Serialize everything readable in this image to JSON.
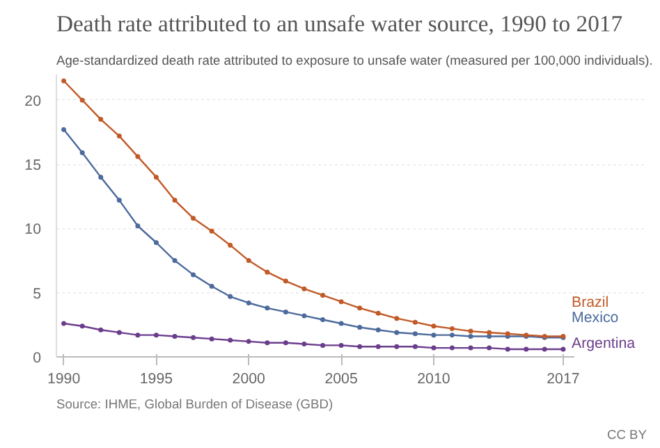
{
  "chart_data": {
    "type": "line",
    "title": "Death rate attributed to an unsafe water source, 1990 to 2017",
    "subtitle": "Age-standardized death rate attributed to exposure to unsafe water (measured per 100,000 individuals).",
    "x": [
      1990,
      1991,
      1992,
      1993,
      1994,
      1995,
      1996,
      1997,
      1998,
      1999,
      2000,
      2001,
      2002,
      2003,
      2004,
      2005,
      2006,
      2007,
      2008,
      2009,
      2010,
      2011,
      2012,
      2013,
      2014,
      2015,
      2016,
      2017
    ],
    "series": [
      {
        "name": "Brazil",
        "color": "#c15a28",
        "values": [
          21.5,
          20.0,
          18.5,
          17.2,
          15.6,
          14.0,
          12.2,
          10.8,
          9.8,
          8.7,
          7.5,
          6.6,
          5.9,
          5.3,
          4.8,
          4.3,
          3.8,
          3.4,
          3.0,
          2.7,
          2.4,
          2.2,
          2.0,
          1.9,
          1.8,
          1.7,
          1.6,
          1.6
        ]
      },
      {
        "name": "Mexico",
        "color": "#4c6a9c",
        "values": [
          17.7,
          15.9,
          14.0,
          12.2,
          10.2,
          8.9,
          7.5,
          6.4,
          5.5,
          4.7,
          4.2,
          3.8,
          3.5,
          3.2,
          2.9,
          2.6,
          2.3,
          2.1,
          1.9,
          1.8,
          1.7,
          1.7,
          1.6,
          1.6,
          1.6,
          1.6,
          1.5,
          1.5
        ]
      },
      {
        "name": "Argentina",
        "color": "#6b3d8c",
        "values": [
          2.6,
          2.4,
          2.1,
          1.9,
          1.7,
          1.7,
          1.6,
          1.5,
          1.4,
          1.3,
          1.2,
          1.1,
          1.1,
          1.0,
          0.9,
          0.9,
          0.8,
          0.8,
          0.8,
          0.8,
          0.7,
          0.7,
          0.7,
          0.7,
          0.6,
          0.6,
          0.6,
          0.6
        ]
      }
    ],
    "xlim": [
      1989.6,
      2017.6
    ],
    "xticks": [
      1990,
      1995,
      2000,
      2005,
      2010,
      2017
    ],
    "ylim": [
      0,
      22
    ],
    "yticks": [
      0,
      5,
      10,
      15,
      20
    ],
    "grid": "y",
    "legend": "right",
    "marker": "circle",
    "line_style": "solid",
    "annotations": [
      "Source: IHME, Global Burden of Disease (GBD)",
      "CC BY"
    ]
  }
}
